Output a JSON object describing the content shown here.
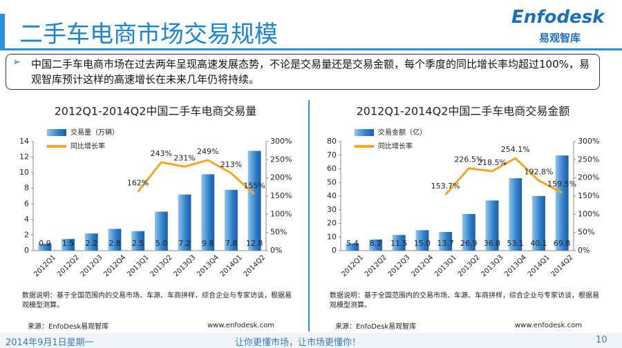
{
  "header": {
    "title": "二手车电商市场交易规模",
    "logo": "Enfodesk",
    "logo_sub": "易观智库"
  },
  "summary": "中国二手车电商市场在过去两年呈现高速发展态势，不论是交易量还是交易金额，每个季度的同比增长率均超过100%，易观智库预计这样的高速增长在未来几年仍将持续。",
  "chart_data": [
    {
      "type": "bar-line",
      "title": "2012Q1-2014Q2中国二手车电商交易量",
      "categories": [
        "2012Q1",
        "2012Q2",
        "2012Q3",
        "2012Q4",
        "2013Q1",
        "2013Q2",
        "2013Q3",
        "2013Q4",
        "2014Q1",
        "2014Q2"
      ],
      "series": [
        {
          "name": "交易量（万辆）",
          "color": "#2f7fc8",
          "values": [
            0.9,
            1.5,
            2.2,
            2.8,
            2.5,
            5.0,
            7.2,
            9.8,
            7.8,
            12.8
          ],
          "value_labels": [
            "0.9",
            "1.5",
            "2.2",
            "2.8",
            "2.5",
            "5.0",
            "7.2",
            "9.8",
            "7.8",
            "12.8"
          ]
        },
        {
          "name": "同比增长率",
          "color": "#f5a623",
          "axis": "y2",
          "values": [
            null,
            null,
            null,
            null,
            162,
            243,
            231,
            249,
            213,
            155
          ],
          "value_labels": [
            null,
            null,
            null,
            null,
            "162%",
            "243%",
            "231%",
            "249%",
            "213%",
            "155%"
          ]
        }
      ],
      "ylim": [
        0,
        14
      ],
      "yticks": [
        0,
        2,
        4,
        6,
        8,
        10,
        12,
        14
      ],
      "y2lim": [
        0,
        300
      ],
      "y2ticks": [
        {
          "value": 0,
          "label": "0%"
        },
        {
          "value": 50,
          "label": "50%"
        },
        {
          "value": 100,
          "label": "100%"
        },
        {
          "value": 150,
          "label": "150%"
        },
        {
          "value": 200,
          "label": "200%"
        },
        {
          "value": 250,
          "label": "250%"
        },
        {
          "value": 300,
          "label": "300%"
        }
      ],
      "notes": "数据说明：基于全国范围内的交易市场、车源、车商拼样，综合企业与专家访谈，根据易观模型测算。",
      "source": "来源：EnfoDesk易观智库",
      "site": "www.enfodesk.com"
    },
    {
      "type": "bar-line",
      "title": "2012Q1-2014Q2中国二手车电商交易金额",
      "categories": [
        "2012Q1",
        "2012Q2",
        "2012Q3",
        "2012Q4",
        "2013Q1",
        "2013Q2",
        "2013Q3",
        "2013Q4",
        "2014Q1",
        "2014Q2"
      ],
      "series": [
        {
          "name": "交易金额（亿）",
          "color": "#2f7fc8",
          "values": [
            5.4,
            8.2,
            11.5,
            15.0,
            13.7,
            26.9,
            36.8,
            53.1,
            40.1,
            69.8
          ],
          "value_labels": [
            "5.4",
            "8.2",
            "11.5",
            "15.0",
            "13.7",
            "26.9",
            "36.8",
            "53.1",
            "40.1",
            "69.8"
          ]
        },
        {
          "name": "同比增长率",
          "color": "#f5a623",
          "axis": "y2",
          "values": [
            null,
            null,
            null,
            null,
            153.7,
            226.5,
            218.5,
            254.1,
            192.8,
            159.5
          ],
          "value_labels": [
            null,
            null,
            null,
            null,
            "153.7%",
            "226.5%",
            "218.5%",
            "254.1%",
            "192.8%",
            "159.5%"
          ]
        }
      ],
      "ylim": [
        0,
        80
      ],
      "yticks": [
        0,
        10,
        20,
        30,
        40,
        50,
        60,
        70,
        80
      ],
      "y2lim": [
        0,
        300
      ],
      "y2ticks": [
        {
          "value": 0,
          "label": "0%"
        },
        {
          "value": 50,
          "label": "50%"
        },
        {
          "value": 100,
          "label": "100%"
        },
        {
          "value": 150,
          "label": "150%"
        },
        {
          "value": 200,
          "label": "200%"
        },
        {
          "value": 250,
          "label": "250%"
        },
        {
          "value": 300,
          "label": "300%"
        }
      ],
      "notes": "数据说明：基于全国范围内的交易市场、车源、车商拼样，综合企业与专家访谈，根据易观模型测算。",
      "source": "来源：EnfoDesk易观智库",
      "site": "www.enfodesk.com"
    }
  ],
  "footer": {
    "date": "2014年9月1日星期一",
    "slogan": "让你更懂市场，让市场更懂你！",
    "page": "10"
  }
}
